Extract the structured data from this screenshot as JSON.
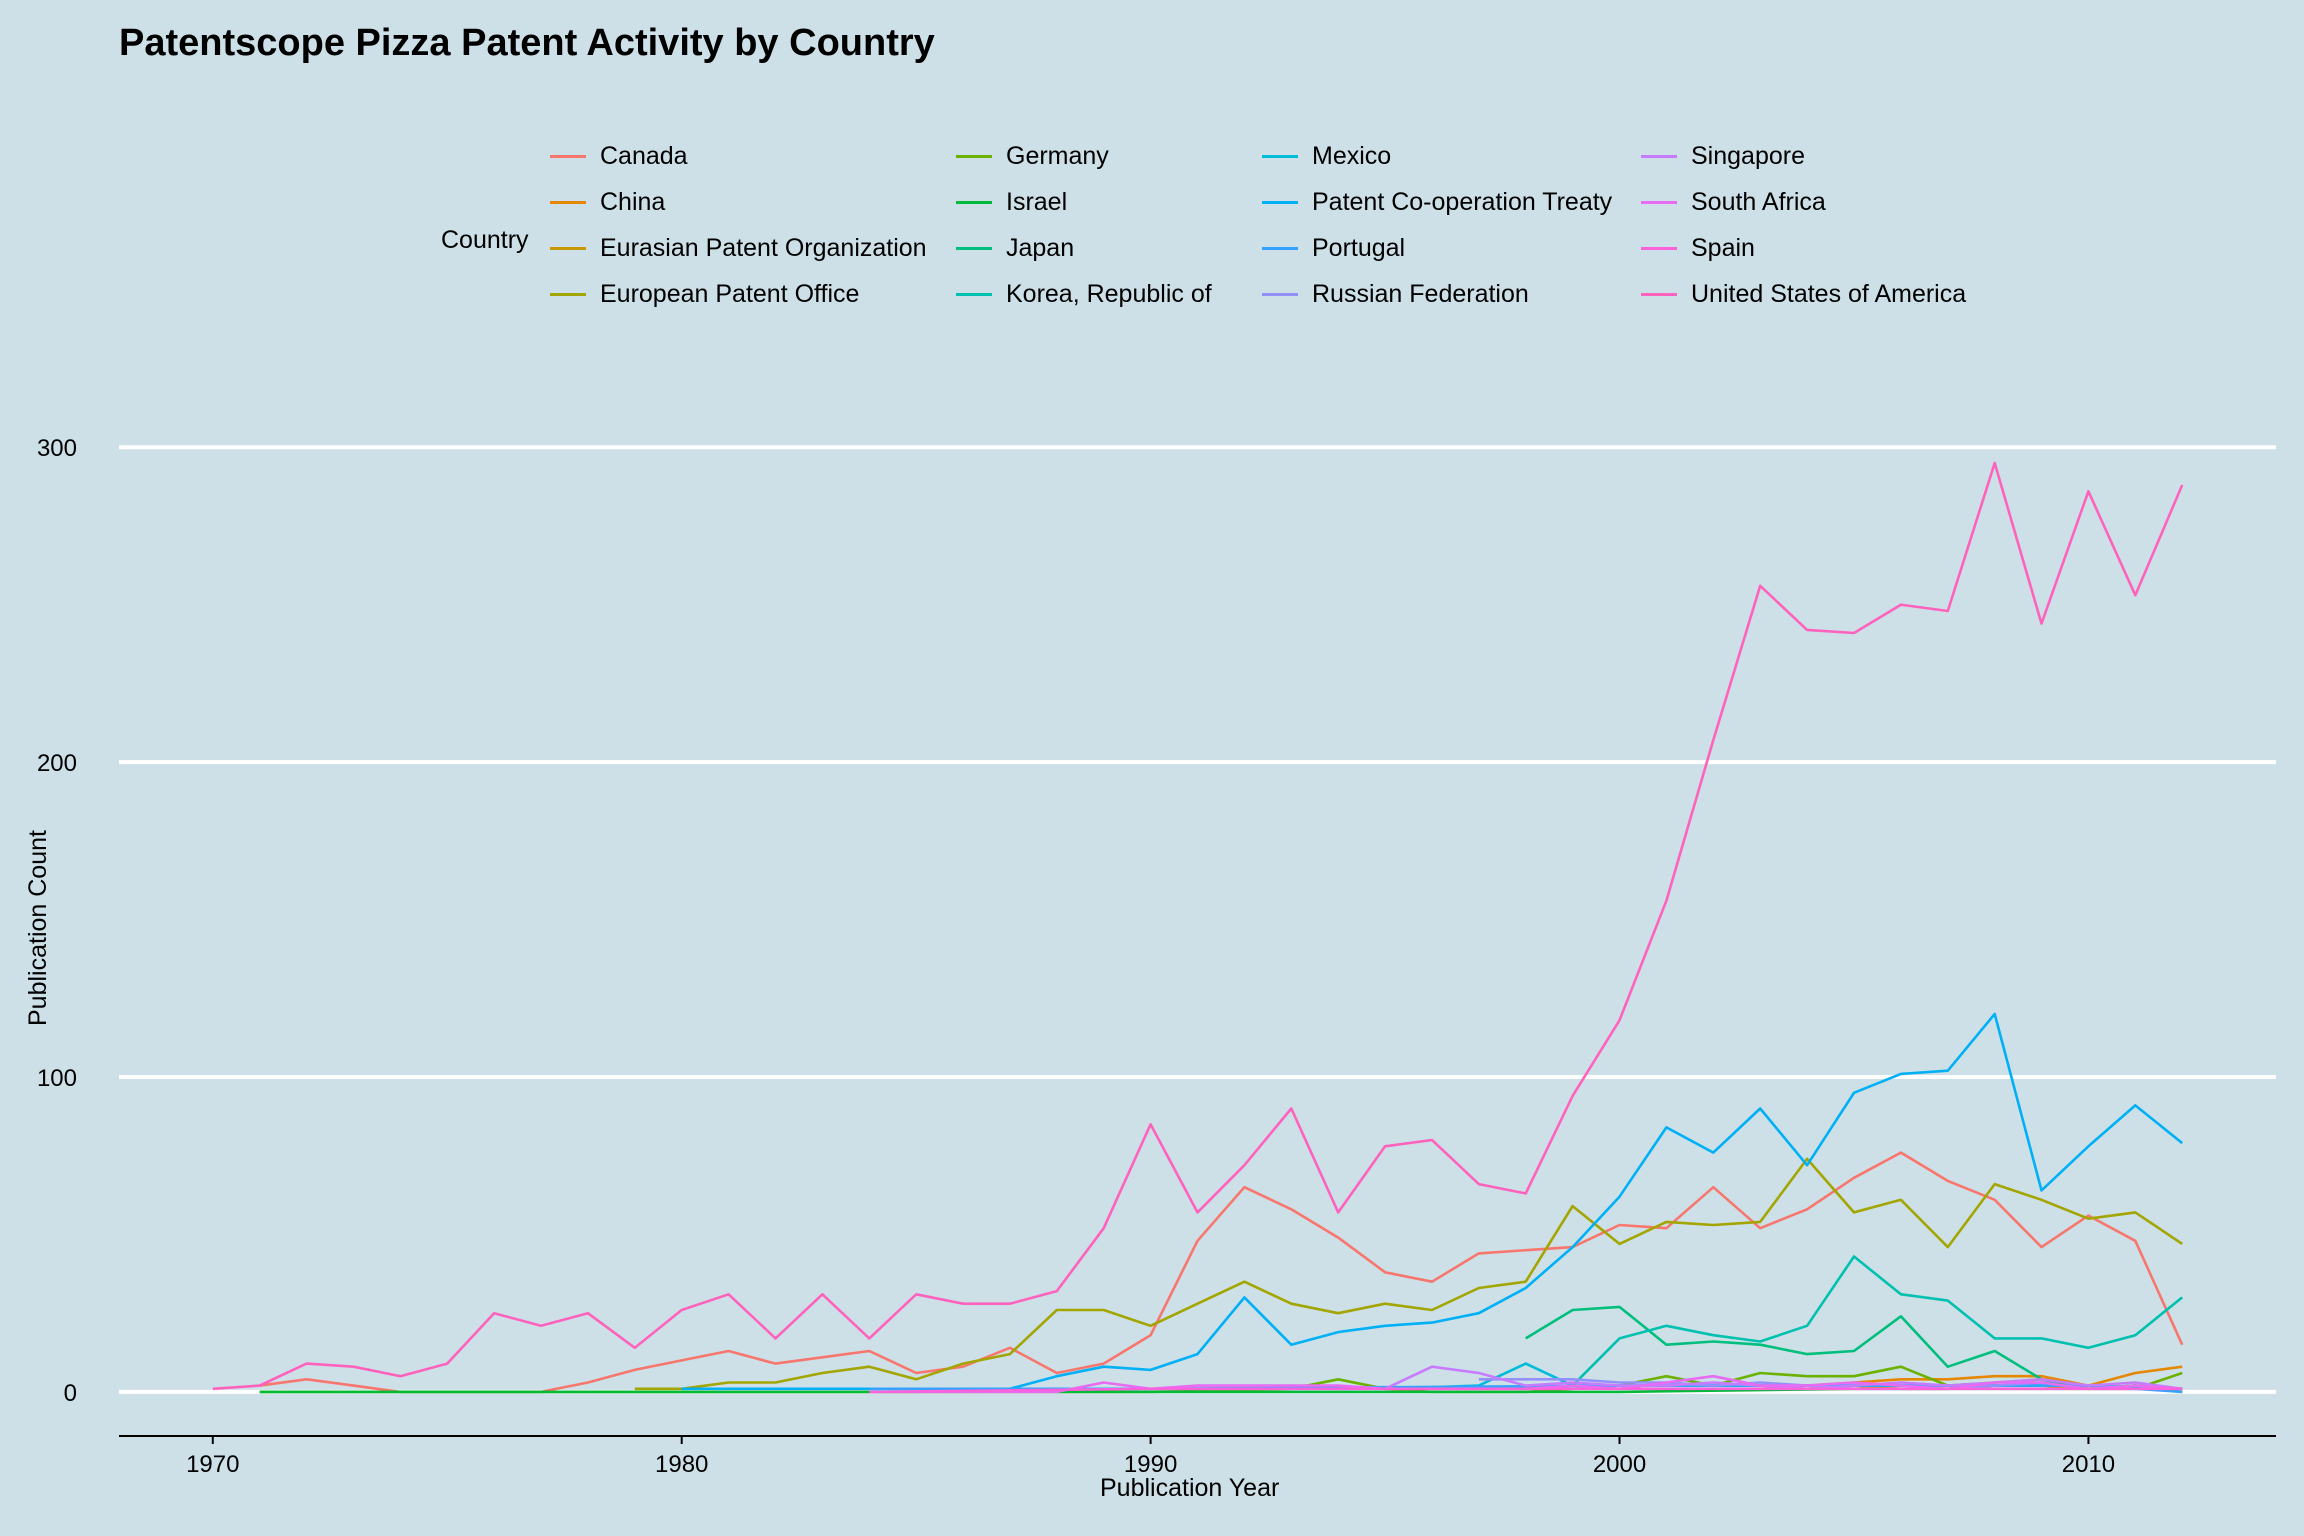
{
  "chart_data": {
    "type": "line",
    "title": "Patentscope Pizza Patent Activity by Country",
    "xlabel": "Publication Year",
    "ylabel": "Publication Count",
    "xlim": [
      1968,
      2014
    ],
    "ylim": [
      -14,
      315
    ],
    "xticks": [
      1970,
      1980,
      1990,
      2000,
      2010
    ],
    "yticks": [
      0,
      100,
      200,
      300
    ],
    "legend_title": "Country",
    "legend_position": "top",
    "grid": "horizontal major lines only",
    "series": [
      {
        "name": "Canada",
        "color": "#F8766D",
        "x": [
          1971,
          1972,
          1973,
          1974,
          1975,
          1976,
          1977,
          1978,
          1979,
          1980,
          1981,
          1982,
          1983,
          1984,
          1985,
          1986,
          1987,
          1988,
          1989,
          1990,
          1991,
          1992,
          1993,
          1994,
          1995,
          1996,
          1997,
          1998,
          1999,
          2000,
          2001,
          2002,
          2003,
          2004,
          2005,
          2006,
          2007,
          2008,
          2009,
          2010,
          2011,
          2012
        ],
        "y": [
          2,
          4,
          2,
          0,
          0,
          0,
          0,
          3,
          7,
          10,
          13,
          9,
          11,
          13,
          6,
          8,
          14,
          6,
          9,
          18,
          48,
          65,
          58,
          49,
          38,
          35,
          44,
          45,
          46,
          53,
          52,
          65,
          52,
          58,
          68,
          76,
          67,
          61,
          46,
          56,
          48,
          15
        ]
      },
      {
        "name": "China",
        "color": "#E58700",
        "x": [
          2003,
          2004,
          2005,
          2006,
          2007,
          2008,
          2009,
          2010,
          2011,
          2012
        ],
        "y": [
          1,
          2,
          3,
          4,
          4,
          5,
          5,
          2,
          6,
          8
        ]
      },
      {
        "name": "Eurasian Patent Organization",
        "color": "#C99800",
        "x": [
          2003,
          2004,
          2005,
          2006,
          2007,
          2008,
          2009,
          2010,
          2011,
          2012
        ],
        "y": [
          1,
          1,
          2,
          1,
          1,
          2,
          2,
          1,
          2,
          1
        ]
      },
      {
        "name": "European Patent Office",
        "color": "#A3A500",
        "x": [
          1979,
          1980,
          1981,
          1982,
          1983,
          1984,
          1985,
          1986,
          1987,
          1988,
          1989,
          1990,
          1991,
          1992,
          1993,
          1994,
          1995,
          1996,
          1997,
          1998,
          1999,
          2000,
          2001,
          2002,
          2003,
          2004,
          2005,
          2006,
          2007,
          2008,
          2009,
          2010,
          2011,
          2012
        ],
        "y": [
          1,
          1,
          3,
          3,
          6,
          8,
          4,
          9,
          12,
          26,
          26,
          21,
          28,
          35,
          28,
          25,
          28,
          26,
          33,
          35,
          59,
          47,
          54,
          53,
          54,
          74,
          57,
          61,
          46,
          66,
          61,
          55,
          57,
          47
        ]
      },
      {
        "name": "Germany",
        "color": "#6BB100",
        "x": [
          1971,
          1975,
          1980,
          1985,
          1990,
          1993,
          1994,
          1995,
          1996,
          1997,
          1998,
          1999,
          2000,
          2001,
          2002,
          2003,
          2004,
          2005,
          2006,
          2007,
          2008,
          2009,
          2010,
          2011,
          2012
        ],
        "y": [
          0,
          0,
          0,
          0,
          0,
          1,
          4,
          1,
          0,
          0,
          0,
          1,
          2,
          5,
          2,
          6,
          5,
          5,
          8,
          2,
          3,
          4,
          1,
          1,
          6
        ]
      },
      {
        "name": "Israel",
        "color": "#00BA38",
        "x": [
          1971,
          1980,
          1990,
          2000,
          2005,
          2010,
          2011,
          2012
        ],
        "y": [
          0,
          0,
          0,
          0,
          1,
          1,
          2,
          0
        ]
      },
      {
        "name": "Japan",
        "color": "#00BF7D",
        "x": [
          1998,
          1999,
          2000,
          2001,
          2002,
          2003,
          2004,
          2005,
          2006,
          2007,
          2008,
          2009,
          2010,
          2011,
          2012
        ],
        "y": [
          17,
          26,
          27,
          15,
          16,
          15,
          12,
          13,
          24,
          8,
          13,
          4,
          1,
          2,
          1
        ]
      },
      {
        "name": "Korea, Republic of",
        "color": "#00C0AF",
        "x": [
          1998,
          1999,
          2000,
          2001,
          2002,
          2003,
          2004,
          2005,
          2006,
          2007,
          2008,
          2009,
          2010,
          2011,
          2012
        ],
        "y": [
          1,
          2,
          17,
          21,
          18,
          16,
          21,
          43,
          31,
          29,
          17,
          17,
          14,
          18,
          30
        ]
      },
      {
        "name": "Mexico",
        "color": "#00BCD8",
        "x": [
          1984,
          1990,
          1995,
          1997,
          1998,
          1999,
          2000,
          2005,
          2010,
          2012
        ],
        "y": [
          1,
          1,
          1,
          2,
          9,
          2,
          2,
          2,
          2,
          1
        ]
      },
      {
        "name": "Patent Co-operation Treaty",
        "color": "#00B0F6",
        "x": [
          1980,
          1985,
          1987,
          1988,
          1989,
          1990,
          1991,
          1992,
          1993,
          1994,
          1995,
          1996,
          1997,
          1998,
          1999,
          2000,
          2001,
          2002,
          2003,
          2004,
          2005,
          2006,
          2007,
          2008,
          2009,
          2010,
          2011,
          2012
        ],
        "y": [
          1,
          1,
          1,
          5,
          8,
          7,
          12,
          30,
          15,
          19,
          21,
          22,
          25,
          33,
          46,
          62,
          84,
          76,
          90,
          72,
          95,
          101,
          102,
          120,
          64,
          78,
          91,
          79
        ]
      },
      {
        "name": "Portugal",
        "color": "#35A2FF",
        "x": [
          1984,
          1990,
          2000,
          2005,
          2010,
          2012
        ],
        "y": [
          1,
          1,
          2,
          2,
          2,
          0
        ]
      },
      {
        "name": "Russian Federation",
        "color": "#9590FF",
        "x": [
          1997,
          1998,
          1999,
          2000,
          2001,
          2002,
          2003,
          2004,
          2005,
          2006,
          2007,
          2008,
          2009,
          2010,
          2011,
          2012
        ],
        "y": [
          4,
          4,
          4,
          3,
          3,
          2,
          3,
          2,
          1,
          1,
          1,
          2,
          3,
          1,
          1,
          1
        ]
      },
      {
        "name": "Singapore",
        "color": "#C77CFF",
        "x": [
          1995,
          1996,
          1997,
          1998,
          1999,
          2000,
          2001,
          2002,
          2003,
          2004,
          2005,
          2006,
          2007,
          2008,
          2009,
          2010,
          2011,
          2012
        ],
        "y": [
          1,
          8,
          6,
          2,
          3,
          2,
          2,
          3,
          2,
          1,
          2,
          3,
          2,
          3,
          4,
          2,
          3,
          1
        ]
      },
      {
        "name": "South Africa",
        "color": "#E76BF3",
        "x": [
          1984,
          1988,
          1989,
          1990,
          1991,
          1992,
          1993,
          1994,
          1995,
          1996,
          1997,
          1998,
          1999,
          2000,
          2001,
          2002,
          2003,
          2004,
          2005,
          2006,
          2007,
          2008,
          2009,
          2010,
          2011,
          2012
        ],
        "y": [
          0,
          0,
          3,
          1,
          2,
          2,
          2,
          2,
          1,
          1,
          1,
          1,
          2,
          1,
          3,
          5,
          2,
          2,
          3,
          2,
          1,
          3,
          3,
          1,
          2,
          1
        ]
      },
      {
        "name": "Spain",
        "color": "#FA62DB",
        "x": [
          1984,
          1990,
          2000,
          2003,
          2005,
          2010,
          2012
        ],
        "y": [
          0,
          1,
          1,
          1,
          1,
          1,
          1
        ]
      },
      {
        "name": "United States of America",
        "color": "#FF62BC",
        "x": [
          1970,
          1971,
          1972,
          1973,
          1974,
          1975,
          1976,
          1977,
          1978,
          1979,
          1980,
          1981,
          1982,
          1983,
          1984,
          1985,
          1986,
          1987,
          1988,
          1989,
          1990,
          1991,
          1992,
          1993,
          1994,
          1995,
          1996,
          1997,
          1998,
          1999,
          2000,
          2001,
          2002,
          2003,
          2004,
          2005,
          2006,
          2007,
          2008,
          2009,
          2010,
          2011,
          2012
        ],
        "y": [
          1,
          2,
          9,
          8,
          5,
          9,
          25,
          21,
          25,
          14,
          26,
          31,
          17,
          31,
          17,
          31,
          28,
          28,
          32,
          52,
          85,
          57,
          72,
          90,
          57,
          78,
          80,
          66,
          63,
          94,
          118,
          156,
          207,
          256,
          242,
          241,
          250,
          248,
          295,
          244,
          286,
          253,
          288
        ]
      }
    ]
  }
}
